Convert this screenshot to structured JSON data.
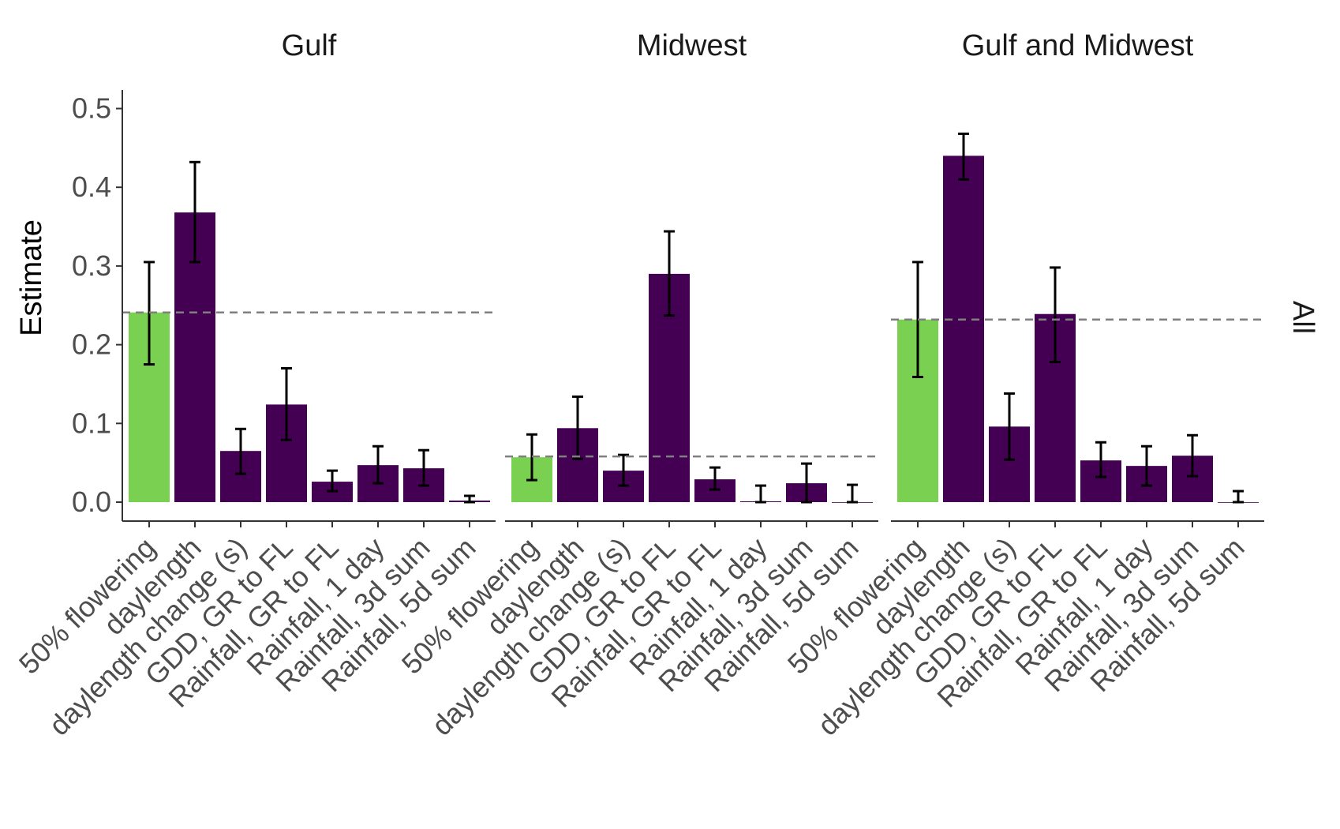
{
  "chart_data": {
    "type": "bar",
    "ylabel": "Estimate",
    "ylim": [
      0,
      0.52
    ],
    "yticks": [
      "0.0",
      "0.1",
      "0.2",
      "0.3",
      "0.4",
      "0.5"
    ],
    "grid": false,
    "strip_label": "All",
    "categories": [
      "50% flowering",
      "daylength",
      "daylength change (s)",
      "GDD, GR to FL",
      "Rainfall, GR to FL",
      "Rainfall, 1 day",
      "Rainfall, 3d sum",
      "Rainfall, 5d sum"
    ],
    "colors": {
      "highlight": "#7AD151",
      "default": "#440154",
      "error": "#000000",
      "reference": "#7f7f7f"
    },
    "panels": [
      {
        "title": "Gulf",
        "reference_line": 0.241,
        "values": [
          0.241,
          0.368,
          0.065,
          0.124,
          0.026,
          0.047,
          0.043,
          0.002
        ],
        "lower": [
          0.175,
          0.305,
          0.036,
          0.079,
          0.014,
          0.024,
          0.021,
          0.0
        ],
        "upper": [
          0.305,
          0.432,
          0.093,
          0.17,
          0.04,
          0.071,
          0.066,
          0.008
        ]
      },
      {
        "title": "Midwest",
        "reference_line": 0.058,
        "values": [
          0.057,
          0.094,
          0.04,
          0.29,
          0.029,
          0.001,
          0.024,
          0.0
        ],
        "lower": [
          0.028,
          0.055,
          0.021,
          0.237,
          0.016,
          0.0,
          0.0,
          0.0
        ],
        "upper": [
          0.086,
          0.134,
          0.06,
          0.344,
          0.044,
          0.021,
          0.049,
          0.022
        ]
      },
      {
        "title": "Gulf and Midwest",
        "reference_line": 0.232,
        "values": [
          0.232,
          0.44,
          0.096,
          0.239,
          0.053,
          0.046,
          0.059,
          0.0
        ],
        "lower": [
          0.159,
          0.41,
          0.054,
          0.178,
          0.032,
          0.021,
          0.033,
          0.0
        ],
        "upper": [
          0.305,
          0.468,
          0.138,
          0.298,
          0.076,
          0.071,
          0.085,
          0.014
        ]
      }
    ]
  }
}
